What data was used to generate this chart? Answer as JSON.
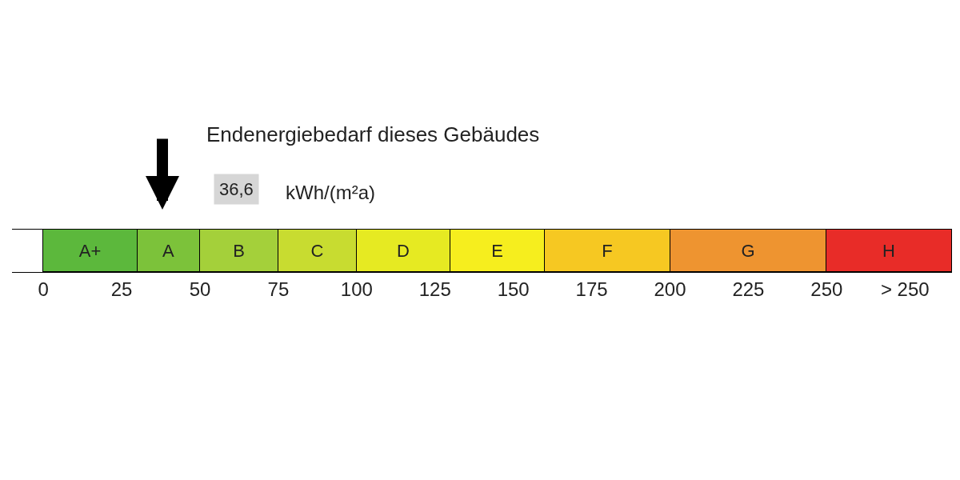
{
  "chart_data": {
    "type": "bar",
    "orientation": "horizontal",
    "stacked": true,
    "title": "Endenergiebedarf dieses Gebäudes",
    "categories": [
      null
    ],
    "series": [
      {
        "name": "A+",
        "color": "#5cb83c",
        "values": [
          30
        ]
      },
      {
        "name": "A",
        "color": "#7cc23a",
        "values": [
          20
        ]
      },
      {
        "name": "B",
        "color": "#a4d03a",
        "values": [
          25
        ]
      },
      {
        "name": "C",
        "color": "#c8dc30",
        "values": [
          25
        ]
      },
      {
        "name": "D",
        "color": "#e6ea22",
        "values": [
          30
        ]
      },
      {
        "name": "E",
        "color": "#f6ee1e",
        "values": [
          30
        ]
      },
      {
        "name": "F",
        "color": "#f6c822",
        "values": [
          40
        ]
      },
      {
        "name": "G",
        "color": "#ee9430",
        "values": [
          50
        ]
      },
      {
        "name": "H",
        "color": "#e82c28",
        "values": [
          40
        ]
      }
    ],
    "xlim": [
      -10,
      290
    ],
    "xticks": [
      0,
      25,
      50,
      75,
      100,
      125,
      150,
      175,
      200,
      225,
      250,
      {
        "value": 275,
        "label": "> 250"
      }
    ],
    "annotations": [
      "36,6",
      "kWh/(m²a)"
    ],
    "tick_labels": "x"
  }
}
